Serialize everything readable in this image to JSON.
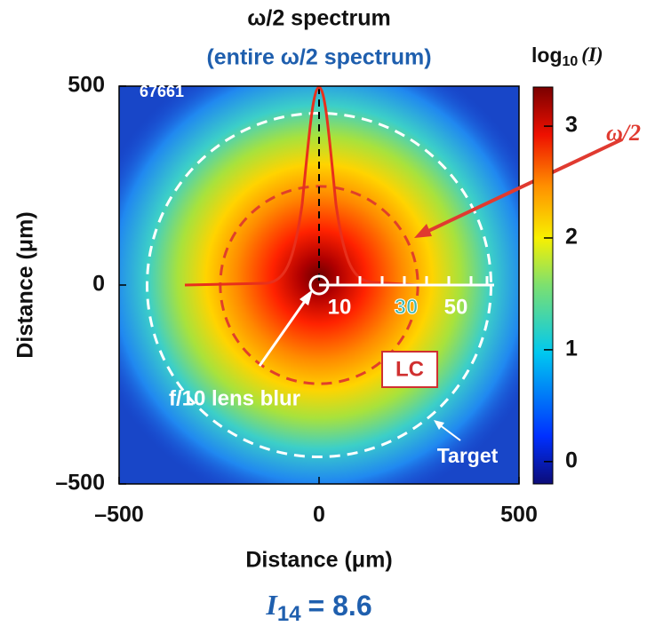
{
  "chart_data": {
    "type": "heatmap",
    "title": "ω/2 spectrum",
    "subtitle": "(entire ω/2 spectrum)",
    "x_label": "Distance (μm)",
    "y_label": "Distance (μm)",
    "xlim": [
      -500,
      500
    ],
    "ylim": [
      -500,
      500
    ],
    "xticks": [
      {
        "value": -500,
        "label": "–500"
      },
      0,
      500
    ],
    "yticks": [
      {
        "value": -500,
        "label": "–500"
      },
      0,
      500
    ],
    "colorbar": {
      "label_base": "log",
      "label_sub": "10",
      "label_arg": "(I)",
      "clim": [
        -0.2,
        3.35
      ],
      "ticks": [
        0,
        1,
        2,
        3
      ]
    },
    "circles": [
      {
        "r": 430,
        "color": "#ffffff"
      },
      {
        "r": 247,
        "color": "#e0402a"
      }
    ],
    "annotations": {
      "shot": "67661",
      "lc": "LC",
      "lens": "f/10 lens blur",
      "target": "Target",
      "omega": "ω/2",
      "scale": [
        "10",
        "30",
        "50"
      ]
    },
    "footer": {
      "symbol": "I",
      "subscript": "14",
      "text": "= 8.6"
    }
  }
}
